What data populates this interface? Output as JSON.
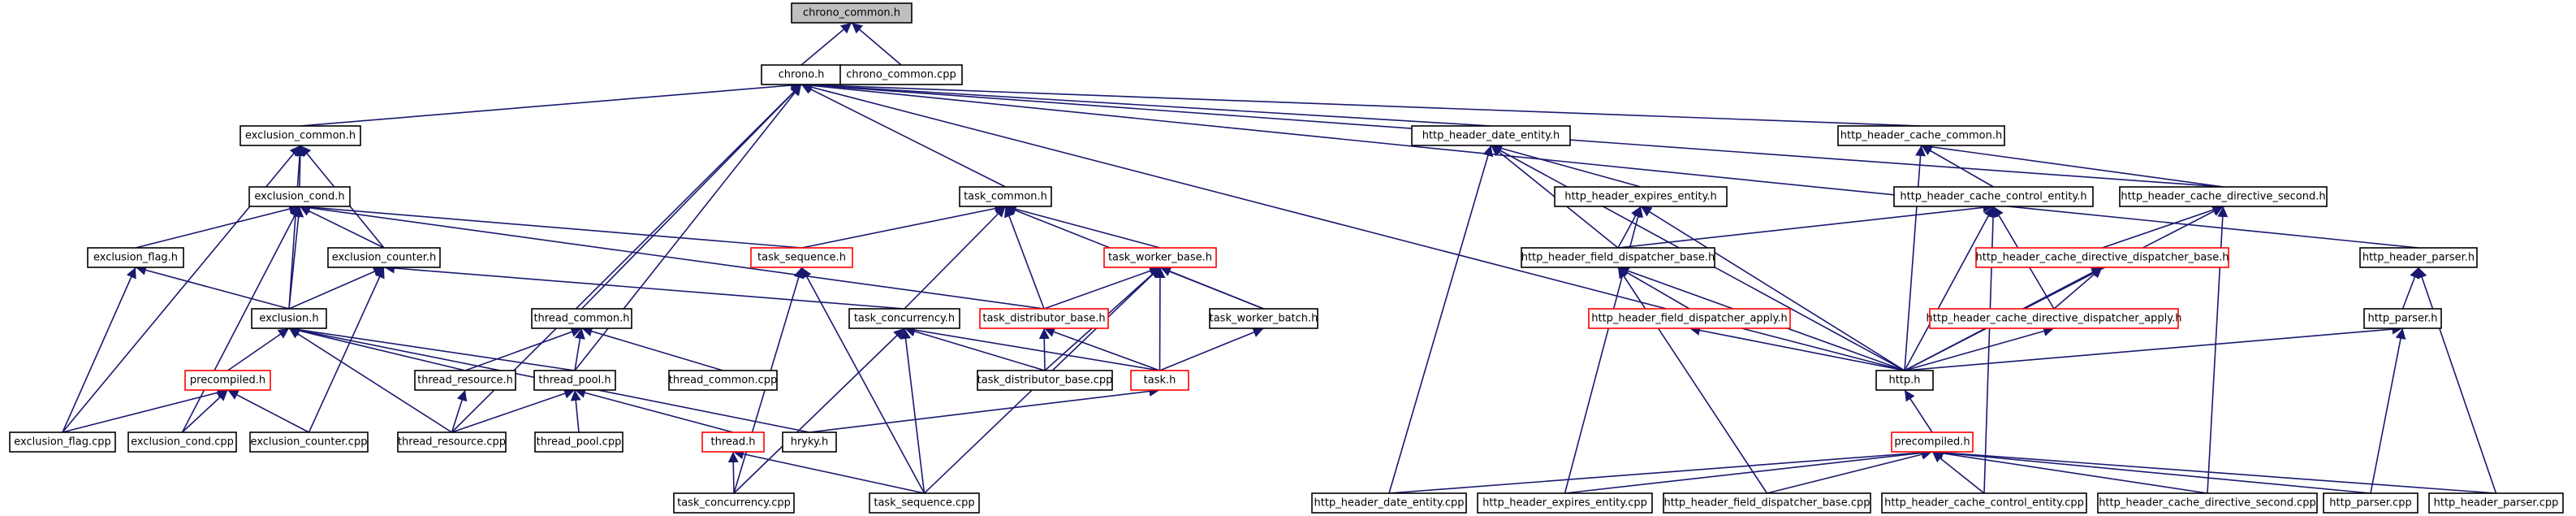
{
  "graph": {
    "colors": {
      "edge": "#191970",
      "border": "#000000",
      "border_incomplete": "#ff0000",
      "root_fill": "#bfbfbf",
      "fill": "#ffffff"
    },
    "nodes": [
      {
        "id": "chrono_common_h",
        "label": "chrono_common.h",
        "kind": "root"
      },
      {
        "id": "chrono_h",
        "label": "chrono.h",
        "kind": "normal"
      },
      {
        "id": "chrono_common_cpp",
        "label": "chrono_common.cpp",
        "kind": "normal"
      },
      {
        "id": "exclusion_common_h",
        "label": "exclusion_common.h",
        "kind": "normal"
      },
      {
        "id": "http_header_date_entity_h",
        "label": "http_header_date_entity.h",
        "kind": "normal"
      },
      {
        "id": "http_header_cache_common_h",
        "label": "http_header_cache_common.h",
        "kind": "normal"
      },
      {
        "id": "exclusion_cond_h",
        "label": "exclusion_cond.h",
        "kind": "normal"
      },
      {
        "id": "task_common_h",
        "label": "task_common.h",
        "kind": "normal"
      },
      {
        "id": "http_header_expires_entity_h",
        "label": "http_header_expires_entity.h",
        "kind": "normal"
      },
      {
        "id": "http_header_cache_control_entity_h",
        "label": "http_header_cache_control_entity.h",
        "kind": "normal"
      },
      {
        "id": "http_header_cache_directive_second_h",
        "label": "http_header_cache_directive_second.h",
        "kind": "normal"
      },
      {
        "id": "exclusion_flag_h",
        "label": "exclusion_flag.h",
        "kind": "normal"
      },
      {
        "id": "exclusion_counter_h",
        "label": "exclusion_counter.h",
        "kind": "normal"
      },
      {
        "id": "task_sequence_h",
        "label": "task_sequence.h",
        "kind": "incomplete"
      },
      {
        "id": "task_worker_base_h",
        "label": "task_worker_base.h",
        "kind": "incomplete"
      },
      {
        "id": "http_header_field_dispatcher_base_h",
        "label": "http_header_field_dispatcher_base.h",
        "kind": "normal"
      },
      {
        "id": "http_header_cache_directive_dispatcher_base_h",
        "label": "http_header_cache_directive_dispatcher_base.h",
        "kind": "incomplete"
      },
      {
        "id": "http_header_parser_h",
        "label": "http_header_parser.h",
        "kind": "normal"
      },
      {
        "id": "exclusion_h",
        "label": "exclusion.h",
        "kind": "normal"
      },
      {
        "id": "thread_common_h",
        "label": "thread_common.h",
        "kind": "normal"
      },
      {
        "id": "task_concurrency_h",
        "label": "task_concurrency.h",
        "kind": "normal"
      },
      {
        "id": "task_distributor_base_h",
        "label": "task_distributor_base.h",
        "kind": "incomplete"
      },
      {
        "id": "task_worker_batch_h",
        "label": "task_worker_batch.h",
        "kind": "normal"
      },
      {
        "id": "http_header_field_dispatcher_apply_h",
        "label": "http_header_field_dispatcher_apply.h",
        "kind": "incomplete"
      },
      {
        "id": "http_header_cache_directive_dispatcher_apply_h",
        "label": "http_header_cache_directive_dispatcher_apply.h",
        "kind": "incomplete"
      },
      {
        "id": "http_parser_h",
        "label": "http_parser.h",
        "kind": "normal"
      },
      {
        "id": "precompiled_h_left",
        "label": "precompiled.h",
        "kind": "incomplete"
      },
      {
        "id": "thread_resource_h",
        "label": "thread_resource.h",
        "kind": "normal"
      },
      {
        "id": "thread_pool_h",
        "label": "thread_pool.h",
        "kind": "normal"
      },
      {
        "id": "thread_common_cpp",
        "label": "thread_common.cpp",
        "kind": "normal"
      },
      {
        "id": "task_distributor_base_cpp",
        "label": "task_distributor_base.cpp",
        "kind": "normal"
      },
      {
        "id": "task_h",
        "label": "task.h",
        "kind": "incomplete"
      },
      {
        "id": "http_h",
        "label": "http.h",
        "kind": "normal"
      },
      {
        "id": "exclusion_flag_cpp",
        "label": "exclusion_flag.cpp",
        "kind": "normal"
      },
      {
        "id": "exclusion_cond_cpp",
        "label": "exclusion_cond.cpp",
        "kind": "normal"
      },
      {
        "id": "exclusion_counter_cpp",
        "label": "exclusion_counter.cpp",
        "kind": "normal"
      },
      {
        "id": "thread_resource_cpp",
        "label": "thread_resource.cpp",
        "kind": "normal"
      },
      {
        "id": "thread_pool_cpp",
        "label": "thread_pool.cpp",
        "kind": "normal"
      },
      {
        "id": "thread_h",
        "label": "thread.h",
        "kind": "incomplete"
      },
      {
        "id": "hryky_h",
        "label": "hryky.h",
        "kind": "normal"
      },
      {
        "id": "precompiled_h_right",
        "label": "precompiled.h",
        "kind": "incomplete"
      },
      {
        "id": "task_concurrency_cpp",
        "label": "task_concurrency.cpp",
        "kind": "normal"
      },
      {
        "id": "task_sequence_cpp",
        "label": "task_sequence.cpp",
        "kind": "normal"
      },
      {
        "id": "http_header_date_entity_cpp",
        "label": "http_header_date_entity.cpp",
        "kind": "normal"
      },
      {
        "id": "http_header_expires_entity_cpp",
        "label": "http_header_expires_entity.cpp",
        "kind": "normal"
      },
      {
        "id": "http_header_field_dispatcher_base_cpp",
        "label": "http_header_field_dispatcher_base.cpp",
        "kind": "normal"
      },
      {
        "id": "http_header_cache_control_entity_cpp",
        "label": "http_header_cache_control_entity.cpp",
        "kind": "normal"
      },
      {
        "id": "http_header_cache_directive_second_cpp",
        "label": "http_header_cache_directive_second.cpp",
        "kind": "normal"
      },
      {
        "id": "http_parser_cpp",
        "label": "http_parser.cpp",
        "kind": "normal"
      },
      {
        "id": "http_header_parser_cpp",
        "label": "http_header_parser.cpp",
        "kind": "normal"
      }
    ],
    "edges": [
      [
        "chrono_h",
        "chrono_common_h"
      ],
      [
        "chrono_common_cpp",
        "chrono_common_h"
      ],
      [
        "exclusion_common_h",
        "chrono_h"
      ],
      [
        "http_header_date_entity_h",
        "chrono_h"
      ],
      [
        "http_header_cache_common_h",
        "chrono_h"
      ],
      [
        "task_common_h",
        "chrono_h"
      ],
      [
        "thread_common_h",
        "chrono_h"
      ],
      [
        "thread_pool_h",
        "chrono_h"
      ],
      [
        "thread_resource_cpp",
        "chrono_h"
      ],
      [
        "http_header_parser_h",
        "chrono_h"
      ],
      [
        "http_h",
        "chrono_h"
      ],
      [
        "http_header_cache_directive_second_h",
        "chrono_h"
      ],
      [
        "exclusion_cond_h",
        "exclusion_common_h"
      ],
      [
        "exclusion_counter_h",
        "exclusion_common_h"
      ],
      [
        "exclusion_h",
        "exclusion_common_h"
      ],
      [
        "exclusion_flag_cpp",
        "exclusion_common_h"
      ],
      [
        "exclusion_flag_h",
        "exclusion_cond_h"
      ],
      [
        "exclusion_counter_h",
        "exclusion_cond_h"
      ],
      [
        "exclusion_h",
        "exclusion_cond_h"
      ],
      [
        "exclusion_cond_cpp",
        "exclusion_cond_h"
      ],
      [
        "task_sequence_h",
        "exclusion_cond_h"
      ],
      [
        "task_distributor_base_h",
        "exclusion_cond_h"
      ],
      [
        "exclusion_h",
        "exclusion_flag_h"
      ],
      [
        "exclusion_flag_cpp",
        "exclusion_flag_h"
      ],
      [
        "exclusion_h",
        "exclusion_counter_h"
      ],
      [
        "exclusion_counter_cpp",
        "exclusion_counter_h"
      ],
      [
        "task_concurrency_h",
        "exclusion_counter_h"
      ],
      [
        "precompiled_h_left",
        "exclusion_h"
      ],
      [
        "thread_resource_h",
        "exclusion_h"
      ],
      [
        "thread_pool_h",
        "exclusion_h"
      ],
      [
        "thread_resource_cpp",
        "exclusion_h"
      ],
      [
        "hryky_h",
        "exclusion_h"
      ],
      [
        "exclusion_flag_cpp",
        "precompiled_h_left"
      ],
      [
        "exclusion_cond_cpp",
        "precompiled_h_left"
      ],
      [
        "exclusion_counter_cpp",
        "precompiled_h_left"
      ],
      [
        "thread_resource_h",
        "thread_common_h"
      ],
      [
        "thread_pool_h",
        "thread_common_h"
      ],
      [
        "thread_common_cpp",
        "thread_common_h"
      ],
      [
        "thread_resource_cpp",
        "thread_resource_h"
      ],
      [
        "thread_resource_cpp",
        "thread_pool_h"
      ],
      [
        "thread_pool_cpp",
        "thread_pool_h"
      ],
      [
        "thread_h",
        "thread_pool_h"
      ],
      [
        "task_concurrency_cpp",
        "thread_h"
      ],
      [
        "task_sequence_cpp",
        "thread_h"
      ],
      [
        "task_sequence_h",
        "task_common_h"
      ],
      [
        "task_worker_base_h",
        "task_common_h"
      ],
      [
        "task_concurrency_h",
        "task_common_h"
      ],
      [
        "task_distributor_base_h",
        "task_common_h"
      ],
      [
        "task_worker_batch_h",
        "task_common_h"
      ],
      [
        "task_concurrency_cpp",
        "task_sequence_h"
      ],
      [
        "task_sequence_cpp",
        "task_sequence_h"
      ],
      [
        "task_distributor_base_h",
        "task_worker_base_h"
      ],
      [
        "task_worker_batch_h",
        "task_worker_base_h"
      ],
      [
        "task_h",
        "task_worker_base_h"
      ],
      [
        "task_distributor_base_cpp",
        "task_worker_base_h"
      ],
      [
        "task_sequence_cpp",
        "task_worker_base_h"
      ],
      [
        "task_distributor_base_cpp",
        "task_concurrency_h"
      ],
      [
        "task_h",
        "task_concurrency_h"
      ],
      [
        "task_concurrency_cpp",
        "task_concurrency_h"
      ],
      [
        "task_sequence_cpp",
        "task_concurrency_h"
      ],
      [
        "task_distributor_base_cpp",
        "task_distributor_base_h"
      ],
      [
        "task_h",
        "task_distributor_base_h"
      ],
      [
        "task_h",
        "task_worker_batch_h"
      ],
      [
        "hryky_h",
        "task_h"
      ],
      [
        "http_header_expires_entity_h",
        "http_header_date_entity_h"
      ],
      [
        "http_header_field_dispatcher_base_h",
        "http_header_date_entity_h"
      ],
      [
        "http_h",
        "http_header_date_entity_h"
      ],
      [
        "http_header_date_entity_cpp",
        "http_header_date_entity_h"
      ],
      [
        "http_header_field_dispatcher_base_h",
        "http_header_expires_entity_h"
      ],
      [
        "http_h",
        "http_header_expires_entity_h"
      ],
      [
        "http_header_expires_entity_cpp",
        "http_header_expires_entity_h"
      ],
      [
        "http_header_field_dispatcher_apply_h",
        "http_header_field_dispatcher_base_h"
      ],
      [
        "http_h",
        "http_header_field_dispatcher_base_h"
      ],
      [
        "http_header_field_dispatcher_base_cpp",
        "http_header_field_dispatcher_base_h"
      ],
      [
        "http_h",
        "http_header_field_dispatcher_apply_h"
      ],
      [
        "http_header_cache_control_entity_h",
        "http_header_cache_common_h"
      ],
      [
        "http_header_cache_directive_second_h",
        "http_header_cache_common_h"
      ],
      [
        "http_h",
        "http_header_cache_common_h"
      ],
      [
        "http_header_field_dispatcher_base_h",
        "http_header_cache_control_entity_h"
      ],
      [
        "http_header_cache_directive_dispatcher_apply_h",
        "http_header_cache_control_entity_h"
      ],
      [
        "http_h",
        "http_header_cache_control_entity_h"
      ],
      [
        "http_header_cache_control_entity_cpp",
        "http_header_cache_control_entity_h"
      ],
      [
        "http_header_cache_directive_dispatcher_base_h",
        "http_header_cache_directive_second_h"
      ],
      [
        "http_h",
        "http_header_cache_directive_second_h"
      ],
      [
        "http_header_cache_directive_second_cpp",
        "http_header_cache_directive_second_h"
      ],
      [
        "http_header_cache_directive_dispatcher_apply_h",
        "http_header_cache_directive_dispatcher_base_h"
      ],
      [
        "http_h",
        "http_header_cache_directive_dispatcher_base_h"
      ],
      [
        "http_h",
        "http_header_cache_directive_dispatcher_apply_h"
      ],
      [
        "http_parser_h",
        "http_header_parser_h"
      ],
      [
        "http_h",
        "http_parser_h"
      ],
      [
        "http_parser_cpp",
        "http_parser_h"
      ],
      [
        "http_header_parser_cpp",
        "http_header_parser_h"
      ],
      [
        "precompiled_h_right",
        "http_h"
      ],
      [
        "http_header_date_entity_cpp",
        "precompiled_h_right"
      ],
      [
        "http_header_expires_entity_cpp",
        "precompiled_h_right"
      ],
      [
        "http_header_field_dispatcher_base_cpp",
        "precompiled_h_right"
      ],
      [
        "http_header_cache_control_entity_cpp",
        "precompiled_h_right"
      ],
      [
        "http_header_cache_directive_second_cpp",
        "precompiled_h_right"
      ],
      [
        "http_parser_cpp",
        "precompiled_h_right"
      ],
      [
        "http_header_parser_cpp",
        "precompiled_h_right"
      ]
    ]
  }
}
